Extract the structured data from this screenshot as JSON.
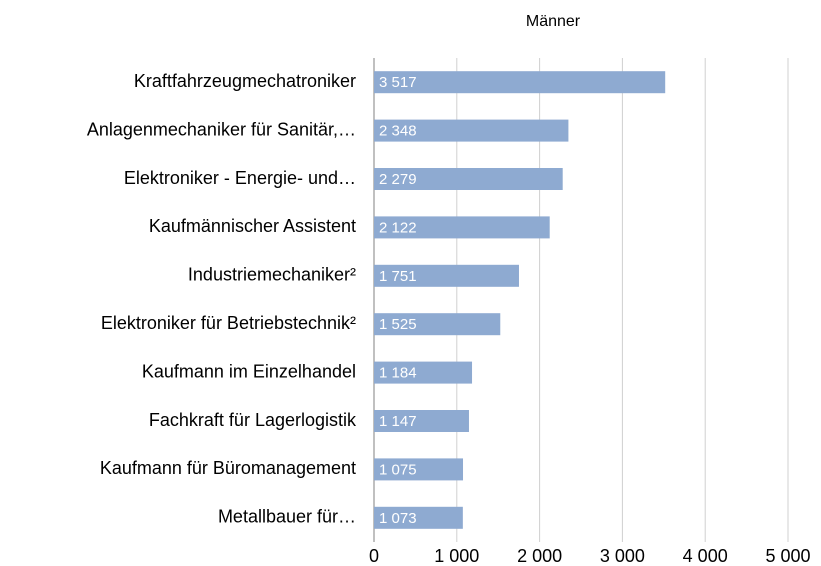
{
  "chart_data": {
    "type": "bar",
    "orientation": "horizontal",
    "title": "Männer",
    "categories": [
      "Kraftfahrzeugmechatroniker",
      "Anlagenmechaniker für Sanitär,…",
      "Elektroniker - Energie- und…",
      "Kaufmännischer Assistent",
      "Industriemechaniker²",
      "Elektroniker für Betriebstechnik²",
      "Kaufmann im Einzelhandel",
      "Fachkraft für Lagerlogistik",
      "Kaufmann für Büromanagement",
      "Metallbauer für…"
    ],
    "values": [
      3517,
      2348,
      2279,
      2122,
      1751,
      1525,
      1184,
      1147,
      1075,
      1073
    ],
    "value_labels": [
      "3 517",
      "2 348",
      "2 279",
      "2 122",
      "1 751",
      "1 525",
      "1 184",
      "1 147",
      "1 075",
      "1 073"
    ],
    "color": "#8eaad1",
    "xlim": [
      0,
      5000
    ],
    "xticks": [
      0,
      {
        "value": 1000,
        "label": "1 000"
      },
      {
        "value": 2000,
        "label": "2 000"
      },
      {
        "value": 3000,
        "label": "3 000"
      },
      {
        "value": 4000,
        "label": "4 000"
      },
      {
        "value": 5000,
        "label": "5 000"
      }
    ],
    "grid": true
  }
}
